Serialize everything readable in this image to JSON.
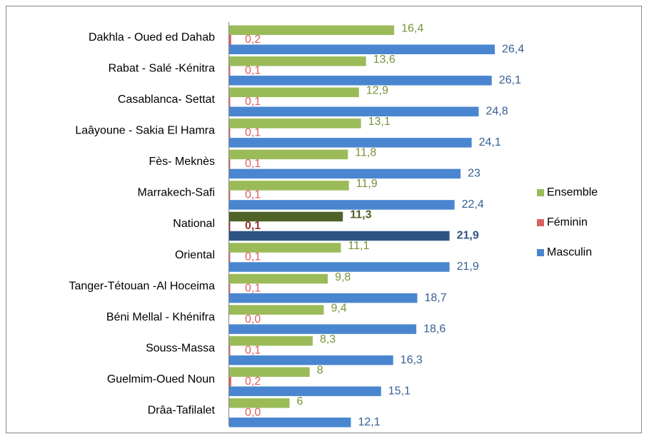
{
  "chart_data": {
    "type": "hbar",
    "categories": [
      "Dakhla - Oued ed Dahab",
      "Rabat - Salé -Kénitra",
      "Casablanca- Settat",
      "Laâyoune - Sakia El Hamra",
      "Fès- Meknès",
      "Marrakech-Safi",
      "National",
      "Oriental",
      "Tanger-Tétouan -Al Hoceima",
      "Béni Mellal - Khénifra",
      "Souss-Massa",
      "Guelmim-Oued Noun",
      "Drâa-Tafilalet"
    ],
    "highlight": "National",
    "legend": "right",
    "series": [
      {
        "name": "Ensemble",
        "color": "#9bbb59",
        "label_color": "#77933c",
        "highlight_color": "#4f6228",
        "values": [
          16.4,
          13.6,
          12.9,
          13.1,
          11.8,
          11.9,
          11.3,
          11.1,
          9.8,
          9.4,
          8.3,
          8,
          6
        ],
        "value_labels": [
          "16,4",
          "13,6",
          "12,9",
          "13,1",
          "11,8",
          "11,9",
          "11,3",
          "11,1",
          "9,8",
          "9,4",
          "8,3",
          "8",
          "6"
        ]
      },
      {
        "name": "Féminin",
        "color": "#d9625f",
        "label_color": "#d9625f",
        "highlight_color": "#953735",
        "values": [
          0.2,
          0.1,
          0.1,
          0.1,
          0.1,
          0.1,
          0.1,
          0.1,
          0.1,
          0.0,
          0.1,
          0.2,
          0.0
        ],
        "value_labels": [
          "0,2",
          "0,1",
          "0,1",
          "0,1",
          "0,1",
          "0,1",
          "0,1",
          "0,1",
          "0,1",
          "0,0",
          "0,1",
          "0,2",
          "0,0"
        ]
      },
      {
        "name": "Masculin",
        "color": "#4a86d0",
        "label_color": "#366092",
        "highlight_color": "#2e5484",
        "values": [
          26.4,
          26.1,
          24.8,
          24.1,
          23,
          22.4,
          21.9,
          21.9,
          18.7,
          18.6,
          16.3,
          15.1,
          12.1
        ],
        "value_labels": [
          "26,4",
          "26,1",
          "24,8",
          "24,1",
          "23",
          "22,4",
          "21,9",
          "21,9",
          "18,7",
          "18,6",
          "16,3",
          "15,1",
          "12,1"
        ]
      }
    ]
  }
}
